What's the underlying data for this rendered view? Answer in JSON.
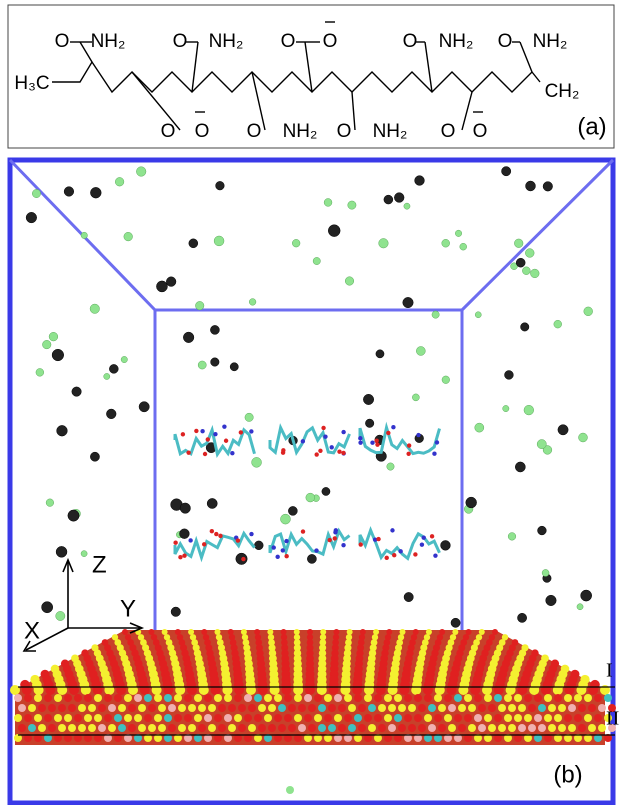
{
  "panel_a": {
    "label": "(a)",
    "top_groups": [
      "O",
      "NH₂",
      "O",
      "NH₂",
      "O",
      "O",
      "O",
      "NH₂",
      "O",
      "NH₂"
    ],
    "bottom_groups": [
      "O",
      "O",
      "O",
      "NH₂",
      "O",
      "NH₂",
      "O",
      "O"
    ],
    "end_groups": [
      "H₃C",
      "CH₂"
    ]
  },
  "panel_b": {
    "label": "(b)",
    "axes": [
      "Z",
      "Y",
      "X"
    ],
    "layers": [
      "I",
      "II"
    ]
  }
}
